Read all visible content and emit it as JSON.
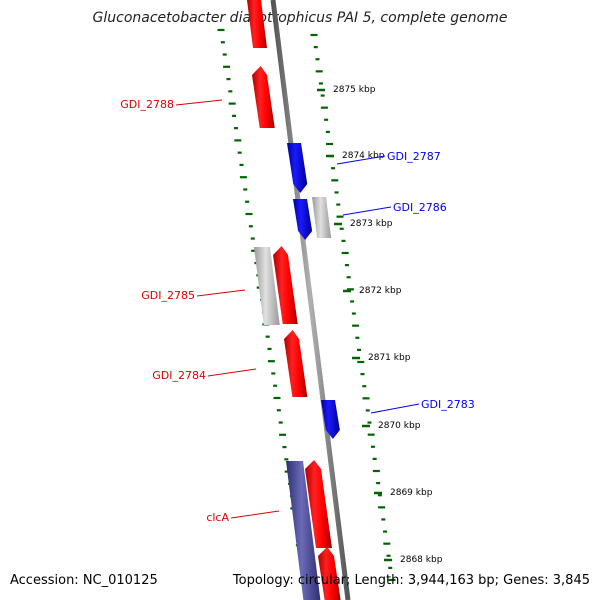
{
  "title": "Gluconacetobacter diazotrophicus PAI 5, complete genome",
  "footer": {
    "accession": "Accession: NC_010125",
    "summary": "Topology: circular; Length: 3,944,163 bp; Genes: 3,845"
  },
  "colors": {
    "forward_gene": "#ff0000",
    "reverse_gene": "#0000ff",
    "pseudo_gene": "#bfbfbf",
    "rna_gene": "#4b4b9a",
    "backbone": "#8c8c8c",
    "gc_ticks": "#006400"
  },
  "scale_labels": [
    "2875 kbp",
    "2874 kbp",
    "2873 kbp",
    "2872 kbp",
    "2871 kbp",
    "2870 kbp",
    "2869 kbp",
    "2868 kbp"
  ],
  "gene_labels": [
    {
      "text": "GDI_2788",
      "side": "left",
      "color": "red"
    },
    {
      "text": "GDI_2787",
      "side": "right",
      "color": "blue"
    },
    {
      "text": "GDI_2786",
      "side": "right",
      "color": "blue"
    },
    {
      "text": "GDI_2785",
      "side": "left",
      "color": "red"
    },
    {
      "text": "GDI_2784",
      "side": "left",
      "color": "red"
    },
    {
      "text": "GDI_2783",
      "side": "right",
      "color": "blue"
    },
    {
      "text": "clcA",
      "side": "left",
      "color": "red"
    }
  ]
}
